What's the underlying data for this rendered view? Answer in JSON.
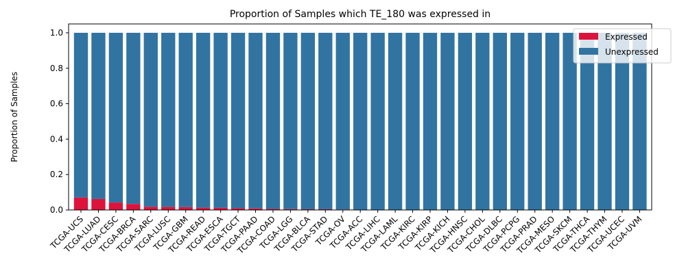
{
  "chart_data": {
    "type": "bar",
    "stacked": true,
    "title": "Proportion of Samples which TE_180 was expressed in",
    "xlabel": "",
    "ylabel": "Proportion of Samples",
    "ylim": [
      0,
      1.05
    ],
    "yticks": [
      "0.0",
      "0.2",
      "0.4",
      "0.6",
      "0.8",
      "1.0"
    ],
    "grid": false,
    "legend_position": "top-right",
    "categories": [
      "TCGA-UCS",
      "TCGA-LUAD",
      "TCGA-CESC",
      "TCGA-BRCA",
      "TCGA-SARC",
      "TCGA-LUSC",
      "TCGA-GBM",
      "TCGA-READ",
      "TCGA-ESCA",
      "TCGA-TGCT",
      "TCGA-PAAD",
      "TCGA-COAD",
      "TCGA-LGG",
      "TCGA-BLCA",
      "TCGA-STAD",
      "TCGA-OV",
      "TCGA-ACC",
      "TCGA-LIHC",
      "TCGA-LAML",
      "TCGA-KIRC",
      "TCGA-KIRP",
      "TCGA-KICH",
      "TCGA-HNSC",
      "TCGA-CHOL",
      "TCGA-DLBC",
      "TCGA-PCPG",
      "TCGA-PRAD",
      "TCGA-MESO",
      "TCGA-SKCM",
      "TCGA-THCA",
      "TCGA-THYM",
      "TCGA-UCEC",
      "TCGA-UVM"
    ],
    "series": [
      {
        "name": "Expressed",
        "color": "#dc143c",
        "values": [
          0.07,
          0.062,
          0.042,
          0.034,
          0.018,
          0.017,
          0.016,
          0.013,
          0.012,
          0.01,
          0.009,
          0.006,
          0.005,
          0.004,
          0.004,
          0.003,
          0,
          0,
          0,
          0,
          0,
          0,
          0,
          0,
          0,
          0,
          0,
          0,
          0,
          0,
          0,
          0,
          0
        ]
      },
      {
        "name": "Unexpressed",
        "color": "#3274a1",
        "values": [
          0.93,
          0.938,
          0.958,
          0.966,
          0.982,
          0.983,
          0.984,
          0.987,
          0.988,
          0.99,
          0.991,
          0.994,
          0.995,
          0.996,
          0.996,
          0.997,
          1,
          1,
          1,
          1,
          1,
          1,
          1,
          1,
          1,
          1,
          1,
          1,
          1,
          1,
          1,
          1,
          1
        ]
      }
    ]
  }
}
